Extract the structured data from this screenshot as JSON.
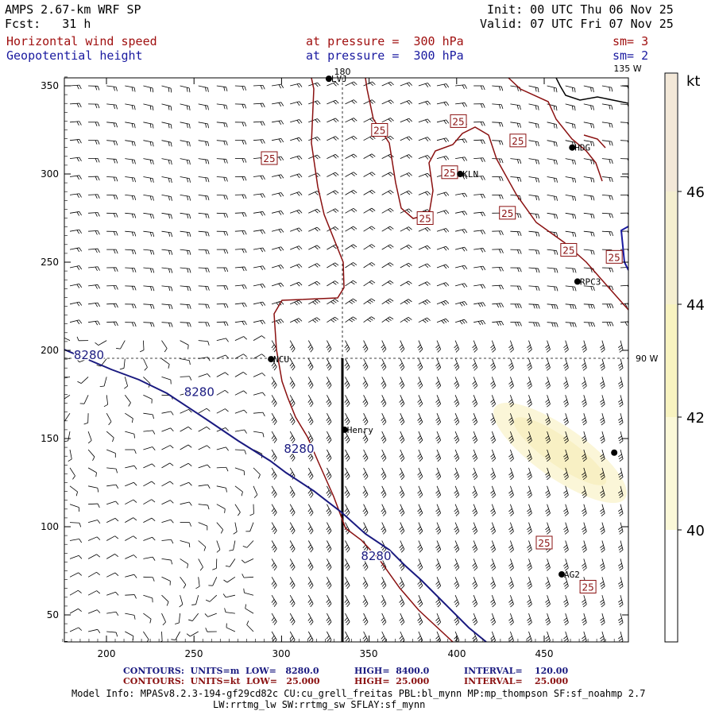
{
  "header": {
    "model": "AMPS 2.67-km WRF SP",
    "forecast": "Fcst:   31 h",
    "init": "Init: 00 UTC Thu 06 Nov 25",
    "valid": "Valid: 07 UTC Fri 07 Nov 25",
    "field1": "Horizontal wind speed",
    "field1_level": "at pressure =  300 hPa",
    "field1_sm": "sm= 3",
    "field2": "Geopotential height",
    "field2_level": "at pressure =  300 hPa",
    "field2_sm": "sm= 2"
  },
  "axes": {
    "x_ticks": [
      "200",
      "250",
      "300",
      "350",
      "400",
      "450"
    ],
    "y_ticks": [
      "350",
      "300",
      "250",
      "200",
      "150",
      "100",
      "50"
    ],
    "lon_top_180": "180",
    "lon_top_135": "135 W",
    "lon_right_90": "90 W"
  },
  "colorbar": {
    "unit": "kt",
    "labels": [
      "46",
      "44",
      "42",
      "40"
    ],
    "colors": [
      "#f3e8d8",
      "#f5efc8",
      "#f8f3c0",
      "#fbf8d8"
    ]
  },
  "stations": [
    {
      "name": "LVJ",
      "lx": 327,
      "ly": 354
    },
    {
      "name": "KLN",
      "lx": 402,
      "ly": 300
    },
    {
      "name": "HDG",
      "lx": 466,
      "ly": 315
    },
    {
      "name": "RPC3",
      "lx": 469,
      "ly": 239
    },
    {
      "name": "NCU",
      "lx": 294,
      "ly": 195
    },
    {
      "name": "Henry",
      "lx": 336,
      "ly": 155
    },
    {
      "name": "AG2",
      "lx": 460,
      "ly": 73
    },
    {
      "name": "",
      "lx": 490,
      "ly": 142
    }
  ],
  "contour_labels": {
    "height": [
      "8280",
      "8280",
      "8280",
      "8280"
    ],
    "wind": [
      "25",
      "25",
      "25",
      "25",
      "25",
      "25",
      "25",
      "25",
      "25",
      "25",
      "25"
    ]
  },
  "footer": {
    "line1_a": "CONTOURS:  UNITS=m  LOW=   8280.0",
    "line1_b": "HIGH=  8400.0",
    "line1_c": "INTERVAL=    120.00",
    "line2_a": "CONTOURS:  UNITS=kt  LOW=   25.000",
    "line2_b": "HIGH=  25.000",
    "line2_c": "INTERVAL=    25.000",
    "model_info": "Model Info: MPASv8.2.3-194-gf29cd82c CU:cu_grell_freitas PBL:bl_mynn MP:mp_thompson SF:sf_noahmp 2.7",
    "model_info2": "LW:rrtmg_lw SW:rrtmg_sw SFLAY:sf_mynn"
  }
}
